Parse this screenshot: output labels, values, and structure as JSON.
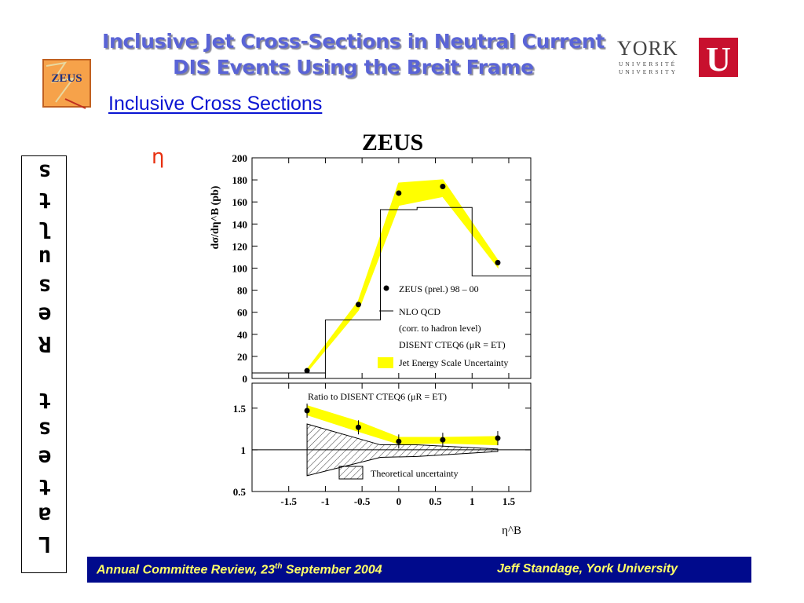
{
  "slide": {
    "title_line1": "Inclusive Jet Cross-Sections in Neutral Current",
    "title_line2": "DIS Events Using the Breit Frame",
    "subtitle": "Inclusive Cross Sections",
    "eta_symbol": "η",
    "zeus_logo_text": "ZEUS",
    "york_text": "YORK",
    "york_line1": "UNIVERSITÉ",
    "york_line2": "UNIVERSITY",
    "york_letter": "U",
    "vertical_letters": [
      "L",
      "a",
      "t",
      "e",
      "s",
      "t",
      "",
      "R",
      "e",
      "s",
      "u",
      "l",
      "t",
      "s"
    ],
    "footer_left_pre": "Annual Committee Review, 23",
    "footer_left_sup": "th",
    "footer_left_post": " September 2004",
    "footer_right": "Jeff Standage, York University"
  },
  "colors": {
    "title": "#5a64d6",
    "subtitle": "#0a14d2",
    "eta": "#e83010",
    "footer_bg": "#000a8c",
    "footer_text": "#ffff66",
    "band": "#ffff00"
  },
  "chart_data": [
    {
      "type": "line",
      "figure_title": "ZEUS",
      "ylabel": "dσ/dη^B (pb)",
      "xlim": [
        -2,
        1.8
      ],
      "ylim": [
        0,
        200
      ],
      "yticks": [
        0,
        20,
        40,
        60,
        80,
        100,
        120,
        140,
        160,
        180,
        200
      ],
      "legend": [
        "ZEUS (prel.) 98 – 00",
        "NLO QCD",
        "(corr. to hadron level)",
        "DISENT CTEQ6 (μR = ET)",
        "Jet Energy Scale Uncertainty"
      ],
      "legend_position": "right",
      "data_points": {
        "name": "ZEUS (prel.) 98 – 00",
        "x": [
          -1.25,
          -0.55,
          0.0,
          0.6,
          1.35
        ],
        "y": [
          7,
          67,
          168,
          174,
          105
        ]
      },
      "nlo_qcd_histogram": {
        "name": "NLO QCD",
        "bin_edges": [
          -2.0,
          -1.0,
          -0.25,
          0.25,
          1.0,
          1.8
        ],
        "values": [
          5,
          53,
          153,
          155,
          93
        ]
      },
      "jet_energy_scale_band": {
        "name": "Jet Energy Scale Uncertainty",
        "x": [
          -1.25,
          -0.55,
          0.0,
          0.6,
          1.35
        ],
        "upper": [
          8,
          70,
          177,
          180,
          107
        ],
        "lower": [
          6,
          62,
          157,
          165,
          101
        ]
      }
    },
    {
      "type": "line",
      "annotation": "Ratio to DISENT CTEQ6 (μR = ET)",
      "xlabel": "η^B",
      "xlim": [
        -2,
        1.8
      ],
      "ylim": [
        0.5,
        1.8
      ],
      "xticks": [
        -1.5,
        -1,
        -0.5,
        0,
        0.5,
        1,
        1.5
      ],
      "yticks": [
        0.5,
        1,
        1.5
      ],
      "legend": [
        "Theoretical uncertainty"
      ],
      "legend_position": "bottom-center",
      "ratio_points": {
        "x": [
          -1.25,
          -0.55,
          0.0,
          0.6,
          1.35
        ],
        "y": [
          1.47,
          1.27,
          1.1,
          1.12,
          1.14
        ]
      },
      "ratio_band": {
        "x": [
          -1.25,
          -0.55,
          0.0,
          0.6,
          1.35
        ],
        "upper": [
          1.53,
          1.34,
          1.15,
          1.15,
          1.16
        ],
        "lower": [
          1.42,
          1.22,
          1.07,
          1.08,
          1.06
        ]
      },
      "theory_band": {
        "x": [
          -1.25,
          -0.25,
          0.25,
          1.35
        ],
        "upper": [
          1.31,
          1.06,
          1.06,
          1.01
        ],
        "lower": [
          0.69,
          0.91,
          0.92,
          0.98
        ]
      }
    }
  ]
}
